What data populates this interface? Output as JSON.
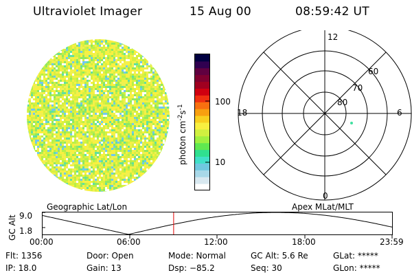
{
  "header": {
    "instrument": "Ultraviolet Imager",
    "date": "15 Aug 00",
    "time": "08:59:42 UT"
  },
  "colorbar": {
    "unit_label": "photon cm",
    "unit_exp1": "-2",
    "unit_s": "s",
    "unit_exp2": "-1",
    "tick_100": "100",
    "tick_10": "10",
    "colors": [
      "#ffffff",
      "#d8e8f0",
      "#a8d8e8",
      "#70c8e0",
      "#40e0c8",
      "#30e090",
      "#60e850",
      "#a0f040",
      "#d0f040",
      "#f8f040",
      "#f8d020",
      "#f8a010",
      "#f87010",
      "#f03010",
      "#d00010",
      "#a00020",
      "#800030",
      "#600040",
      "#300050",
      "#000040"
    ]
  },
  "polar": {
    "label_12": "12",
    "label_18": "18",
    "label_6": "6",
    "label_0": "0",
    "label_60": "60",
    "label_70": "70",
    "label_80": "80"
  },
  "orbit": {
    "left_label": "Geographic Lat/Lon",
    "right_label": "Apex MLat/MLT",
    "axis_label": "GC Alt",
    "y_top": "9.0",
    "y_bottom": "1.8",
    "x_ticks": [
      "00:00",
      "06:00",
      "12:00",
      "18:00",
      "23:59"
    ],
    "current_time_fraction": 0.375,
    "line_color": "#000000",
    "marker_color": "#e00000"
  },
  "info": {
    "flt": "Flt: 1356",
    "ip": "IP: 18.0",
    "door": "Door: Open",
    "gain": "Gain: 13",
    "mode": "Mode: Normal",
    "dsp": "Dsp:  −85.2",
    "gcalt": "GC Alt: 5.6 Re",
    "seq": "Seq: 30",
    "glat": "GLat: *****",
    "glon": "GLon: *****"
  }
}
